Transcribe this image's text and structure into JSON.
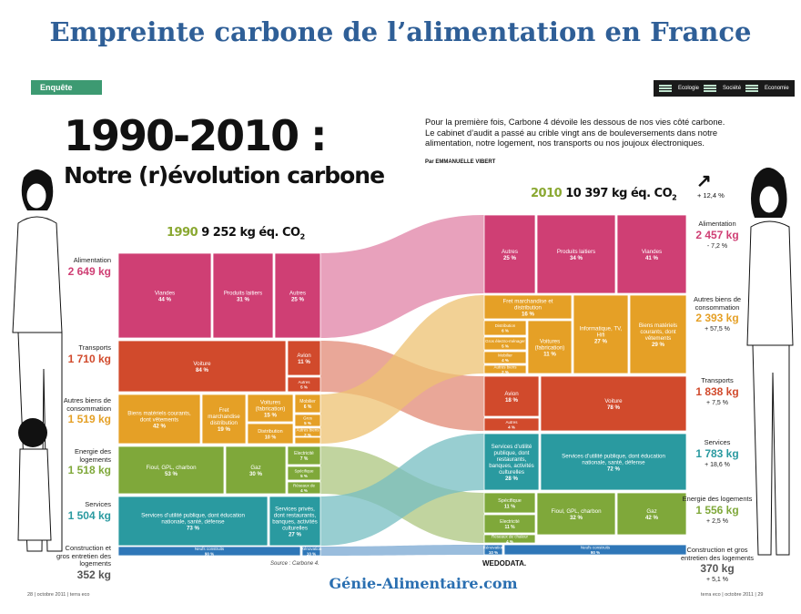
{
  "header": {
    "title": "Empreinte carbone de l’alimentation en France",
    "badge": "Enquête",
    "tabs": [
      "Ecologie",
      "Société",
      "Economie"
    ],
    "big_title": "1990-2010 :",
    "subtitle": "Notre (r)évolution carbone",
    "intro": "Pour la première fois, Carbone 4 dévoile les dessous de nos vies côté carbone. Le cabinet d’audit a passé au crible vingt ans de bouleversements dans notre alimentation, notre logement, nos transports ou nos joujoux électroniques.",
    "byline": "Par EMMANUELLE VIBERT"
  },
  "years": {
    "left": {
      "year": "1990",
      "value": "9 252 kg éq. CO",
      "sub": "2"
    },
    "right": {
      "year": "2010",
      "value": "10 397 kg éq. CO",
      "sub": "2"
    }
  },
  "left_categories": [
    {
      "name": "Alimentation",
      "value": "2 649 kg",
      "color": "#cf3f74"
    },
    {
      "name": "Transports",
      "value": "1 710 kg",
      "color": "#d14a2c"
    },
    {
      "name": "Autres biens de consommation",
      "value": "1 519 kg",
      "color": "#e5a026"
    },
    {
      "name": "Energie des logements",
      "value": "1 518 kg",
      "color": "#7fa83a"
    },
    {
      "name": "Services",
      "value": "1 504 kg",
      "color": "#2a9aa0"
    },
    {
      "name": "Construction et gros entretien des logements",
      "value": "352 kg",
      "color": "#2f77b8"
    }
  ],
  "right_categories": [
    {
      "name": "Alimentation",
      "value": "2 457 kg",
      "change": "- 7,2 %",
      "color": "#cf3f74"
    },
    {
      "name": "Autres biens de consommation",
      "value": "2 393 kg",
      "change": "+ 57,5 %",
      "color": "#e5a026"
    },
    {
      "name": "Transports",
      "value": "1 838 kg",
      "change": "+ 7,5 %",
      "color": "#d14a2c"
    },
    {
      "name": "Services",
      "value": "1 783 kg",
      "change": "+ 18,6 %",
      "color": "#2a9aa0"
    },
    {
      "name": "Energie des logements",
      "value": "1 556 kg",
      "change": "+ 2,5 %",
      "color": "#7fa83a"
    },
    {
      "name": "Construction et gros entretien des logements",
      "value": "370 kg",
      "change": "+ 5,1 %",
      "color": "#2f77b8"
    }
  ],
  "total_change": "+ 12,4 %",
  "chart_data": {
    "type": "table",
    "left_year": "1990",
    "right_year": "2010",
    "left_blocks": [
      {
        "label": "Viandes",
        "pct": "44 %"
      },
      {
        "label": "Produits laitiers",
        "pct": "31 %"
      },
      {
        "label": "Autres",
        "pct": "25 %"
      },
      {
        "label": "Voiture",
        "pct": "84 %"
      },
      {
        "label": "Avion",
        "pct": "11 %"
      },
      {
        "label": "Autres",
        "pct": "5 %"
      },
      {
        "label": "Biens matériels courants, dont vêtements",
        "pct": "42 %"
      },
      {
        "label": "Fret marchandise distribution",
        "pct": "19 %"
      },
      {
        "label": "Voitures (fabrication)",
        "pct": "15 %"
      },
      {
        "label": "Distribution",
        "pct": "10 %"
      },
      {
        "label": "Mobilier",
        "pct": "6 %"
      },
      {
        "label": "Gros électro-ménager",
        "pct": "5 %"
      },
      {
        "label": "Autres biens durables",
        "pct": "2 %"
      },
      {
        "label": "Informatique, TV, Hifi",
        "pct": "1 %"
      },
      {
        "label": "Fioul, GPL, charbon",
        "pct": "53 %"
      },
      {
        "label": "Gaz",
        "pct": "30 %"
      },
      {
        "label": "Electricité",
        "pct": "7 %"
      },
      {
        "label": "Spécifique",
        "pct": "5 %"
      },
      {
        "label": "Réseaux de chaleur",
        "pct": "4 %"
      },
      {
        "label": "Services d’utilité publique, dont éducation nationale, santé, défense",
        "pct": "73 %"
      },
      {
        "label": "Services privés, dont restaurants, banques, activités culturelles",
        "pct": "27 %"
      },
      {
        "label": "Neufs construits",
        "pct": "90 %"
      },
      {
        "label": "Rénovation",
        "pct": "10 %"
      }
    ],
    "right_blocks": [
      {
        "label": "Autres",
        "pct": "25 %"
      },
      {
        "label": "Produits laitiers",
        "pct": "34 %"
      },
      {
        "label": "Viandes",
        "pct": "41 %"
      },
      {
        "label": "Fret marchandise et distribution",
        "pct": "16 %"
      },
      {
        "label": "Distribution",
        "pct": "6 %"
      },
      {
        "label": "Gros électro-ménager",
        "pct": "5 %"
      },
      {
        "label": "Mobilier",
        "pct": "4 %"
      },
      {
        "label": "Autres biens durables",
        "pct": "2 %"
      },
      {
        "label": "Voitures (fabrication)",
        "pct": "11 %"
      },
      {
        "label": "Informatique, TV, Hifi",
        "pct": "27 %"
      },
      {
        "label": "Biens matériels courants, dont vêtements",
        "pct": "29 %"
      },
      {
        "label": "Avion",
        "pct": "18 %"
      },
      {
        "label": "Voiture",
        "pct": "78 %"
      },
      {
        "label": "Autres",
        "pct": "4 %"
      },
      {
        "label": "Services d’utilité publique, dont restaurants, banques, activités culturelles",
        "pct": "28 %"
      },
      {
        "label": "Services d’utilité publique, dont éducation nationale, santé, défense",
        "pct": "72 %"
      },
      {
        "label": "Spécifique",
        "pct": "11 %"
      },
      {
        "label": "Electricité",
        "pct": "11 %"
      },
      {
        "label": "Fioul, GPL, charbon",
        "pct": "32 %"
      },
      {
        "label": "Gaz",
        "pct": "42 %"
      },
      {
        "label": "Réseaux de chaleur",
        "pct": "4 %"
      },
      {
        "label": "Rénovation",
        "pct": "10 %"
      },
      {
        "label": "Neufs construits",
        "pct": "90 %"
      }
    ]
  },
  "footer": {
    "source": "Source : Carbone 4.",
    "credit": "WEDODATA.",
    "brand": "Génie-Alimentaire.com",
    "page_left": "28 | octobre 2011 | terra eco",
    "page_right": "terra eco | octobre 2011 | 29"
  }
}
